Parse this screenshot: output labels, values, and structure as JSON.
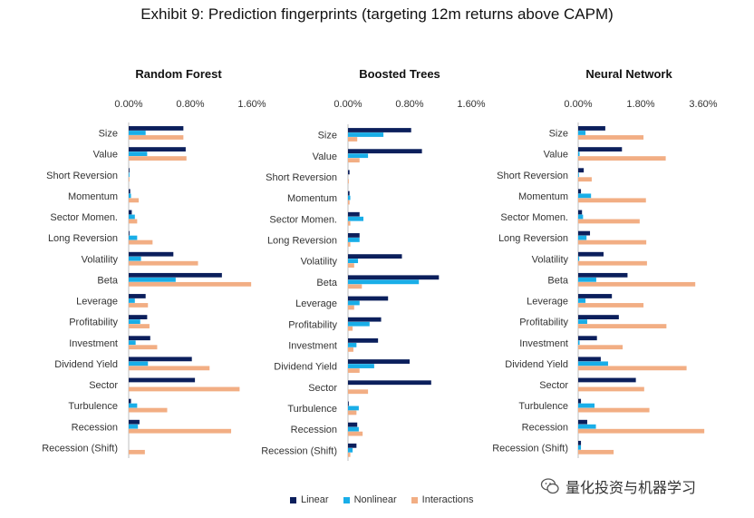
{
  "title": "Exhibit 9: Prediction fingerprints (targeting 12m returns above CAPM)",
  "colors": {
    "linear": "#0b1f5c",
    "nonlinear": "#19aee8",
    "interactions": "#f2ae84"
  },
  "legend": [
    "Linear",
    "Nonlinear",
    "Interactions"
  ],
  "watermark": "量化投资与机器学习",
  "chart_data": [
    {
      "type": "bar",
      "orientation": "horizontal",
      "title": "Random Forest",
      "xlim": [
        0,
        0.016
      ],
      "xticks": [
        "0.00%",
        "0.80%",
        "1.60%"
      ],
      "categories": [
        "Size",
        "Value",
        "Short Reversion",
        "Momentum",
        "Sector Momen.",
        "Long Reversion",
        "Volatility",
        "Beta",
        "Leverage",
        "Profitability",
        "Investment",
        "Dividend Yield",
        "Sector",
        "Turbulence",
        "Recession",
        "Recession (Shift)"
      ],
      "series": [
        {
          "name": "Linear",
          "values": [
            0.0071,
            0.0074,
            0.0001,
            0.0002,
            0.0004,
            0.0001,
            0.0058,
            0.0121,
            0.0022,
            0.0024,
            0.0028,
            0.0082,
            0.0086,
            0.0003,
            0.0014,
            0.0
          ]
        },
        {
          "name": "Nonlinear",
          "values": [
            0.0022,
            0.0024,
            0.0001,
            0.0003,
            0.0008,
            0.0011,
            0.0016,
            0.0061,
            0.0008,
            0.0015,
            0.0009,
            0.0025,
            0.0,
            0.0011,
            0.0012,
            0.0
          ]
        },
        {
          "name": "Interactions",
          "values": [
            0.0071,
            0.0075,
            0.0001,
            0.0013,
            0.0011,
            0.0031,
            0.009,
            0.0159,
            0.0025,
            0.0027,
            0.0037,
            0.0105,
            0.0144,
            0.005,
            0.0133,
            0.0021
          ]
        }
      ]
    },
    {
      "type": "bar",
      "orientation": "horizontal",
      "title": "Boosted Trees",
      "xlim": [
        0,
        0.016
      ],
      "xticks": [
        "0.00%",
        "0.80%",
        "1.60%"
      ],
      "categories": [
        "Size",
        "Value",
        "Short Reversion",
        "Momentum",
        "Sector Momen.",
        "Long Reversion",
        "Volatility",
        "Beta",
        "Leverage",
        "Profitability",
        "Investment",
        "Dividend Yield",
        "Sector",
        "Turbulence",
        "Recession",
        "Recession (Shift)"
      ],
      "series": [
        {
          "name": "Linear",
          "values": [
            0.0082,
            0.0096,
            0.0002,
            0.0002,
            0.0015,
            0.0015,
            0.007,
            0.0118,
            0.0052,
            0.0043,
            0.0039,
            0.008,
            0.0108,
            0.0001,
            0.0012,
            0.0011
          ]
        },
        {
          "name": "Nonlinear",
          "values": [
            0.0046,
            0.0026,
            0.0,
            0.0003,
            0.002,
            0.0015,
            0.0013,
            0.0092,
            0.0015,
            0.0028,
            0.0011,
            0.0034,
            0.0,
            0.0014,
            0.0014,
            0.0006
          ]
        },
        {
          "name": "Interactions",
          "values": [
            0.0012,
            0.0015,
            0.0001,
            0.0002,
            0.0003,
            0.0003,
            0.0008,
            0.0018,
            0.0008,
            0.0006,
            0.0007,
            0.0015,
            0.0026,
            0.0011,
            0.0019,
            0.0003
          ]
        }
      ]
    },
    {
      "type": "bar",
      "orientation": "horizontal",
      "title": "Neural Network",
      "xlim": [
        0,
        0.036
      ],
      "xticks": [
        "0.00%",
        "1.80%",
        "3.60%"
      ],
      "categories": [
        "Size",
        "Value",
        "Short Reversion",
        "Momentum",
        "Sector Momen.",
        "Long Reversion",
        "Volatility",
        "Beta",
        "Leverage",
        "Profitability",
        "Investment",
        "Dividend Yield",
        "Sector",
        "Turbulence",
        "Recession",
        "Recession (Shift)"
      ],
      "series": [
        {
          "name": "Linear",
          "values": [
            0.0078,
            0.0126,
            0.0016,
            0.0008,
            0.0011,
            0.0034,
            0.0073,
            0.0142,
            0.0097,
            0.0117,
            0.0054,
            0.0065,
            0.0166,
            0.0008,
            0.0026,
            0.0008
          ]
        },
        {
          "name": "Nonlinear",
          "values": [
            0.0021,
            0.0004,
            0.0002,
            0.0037,
            0.0014,
            0.0024,
            0.0003,
            0.0052,
            0.0021,
            0.0026,
            0.0004,
            0.0086,
            0.0,
            0.0047,
            0.0051,
            0.0008
          ]
        },
        {
          "name": "Interactions",
          "values": [
            0.0188,
            0.0252,
            0.0039,
            0.0195,
            0.0177,
            0.0196,
            0.0198,
            0.0337,
            0.0188,
            0.0254,
            0.0128,
            0.0312,
            0.019,
            0.0205,
            0.0363,
            0.0102
          ]
        }
      ]
    }
  ]
}
